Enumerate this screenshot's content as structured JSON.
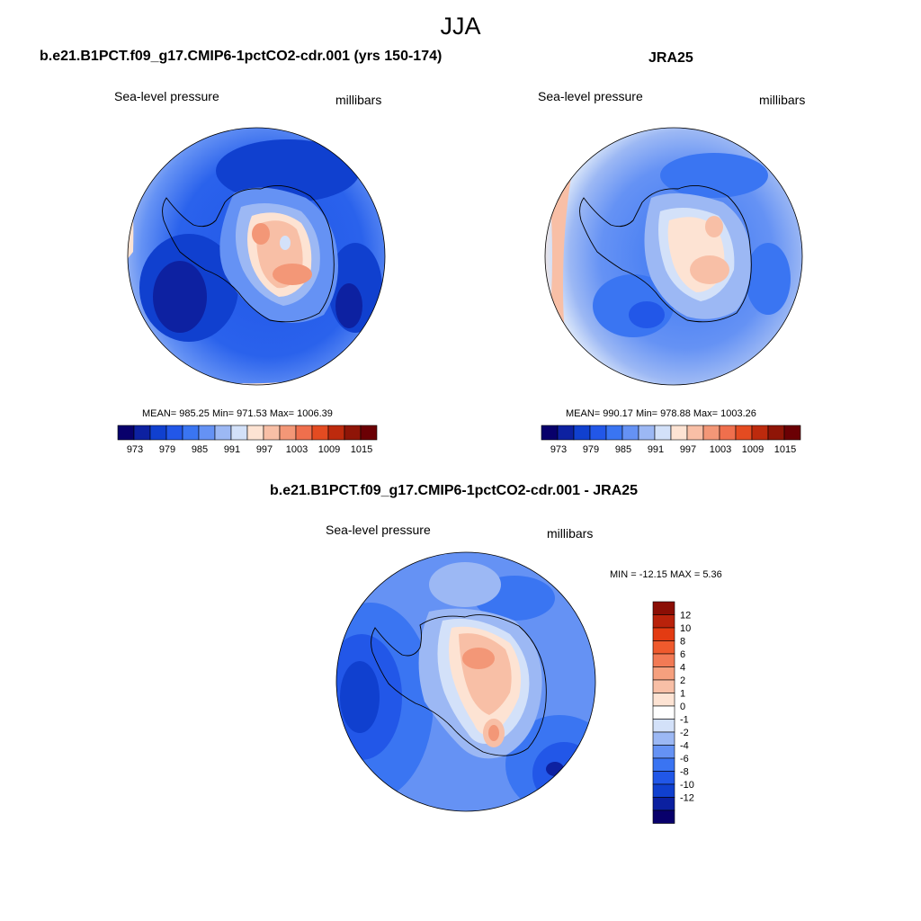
{
  "figure_title": "JJA",
  "panels": [
    {
      "title": "b.e21.B1PCT.f09_g17.CMIP6-1pctCO2-cdr.001 (yrs 150-174)",
      "left_label": "Sea-level pressure",
      "right_label": "millibars",
      "stats": "MEAN= 985.25  Min= 971.53  Max= 1006.39"
    },
    {
      "title": "JRA25",
      "left_label": "Sea-level pressure",
      "right_label": "millibars",
      "stats": "MEAN= 990.17  Min= 978.88  Max= 1003.26"
    },
    {
      "title": "b.e21.B1PCT.f09_g17.CMIP6-1pctCO2-cdr.001 - JRA25",
      "left_label": "Sea-level pressure",
      "right_label": "millibars",
      "stats": "MIN = -12.15 MAX =   5.36"
    }
  ],
  "colorbar_abs": {
    "colors": [
      "#08006b",
      "#0d21a1",
      "#1040cf",
      "#2257e8",
      "#3a75f2",
      "#6592f4",
      "#9cb8f4",
      "#d3e1f9",
      "#fde3d3",
      "#f8bfa6",
      "#f39777",
      "#ef6f4d",
      "#e44b21",
      "#bd2a0d",
      "#8f1507",
      "#6b0004"
    ],
    "tick_labels": [
      "973",
      "979",
      "985",
      "991",
      "997",
      "1003",
      "1009",
      "1015"
    ]
  },
  "colorbar_diff": {
    "colors": [
      "#08006b",
      "#0b20a0",
      "#1040cf",
      "#2157e8",
      "#3a74f2",
      "#6592f4",
      "#9cb8f4",
      "#d3e1f9",
      "#ffffff",
      "#fde3d3",
      "#f8bfa6",
      "#f6a07e",
      "#f27a55",
      "#ef5a2d",
      "#e33b12",
      "#b9220b",
      "#8b0e05"
    ],
    "tick_labels": [
      "12",
      "10",
      "8",
      "6",
      "4",
      "2",
      "1",
      "0",
      "-1",
      "-2",
      "-4",
      "-6",
      "-8",
      "-10",
      "-12"
    ]
  }
}
